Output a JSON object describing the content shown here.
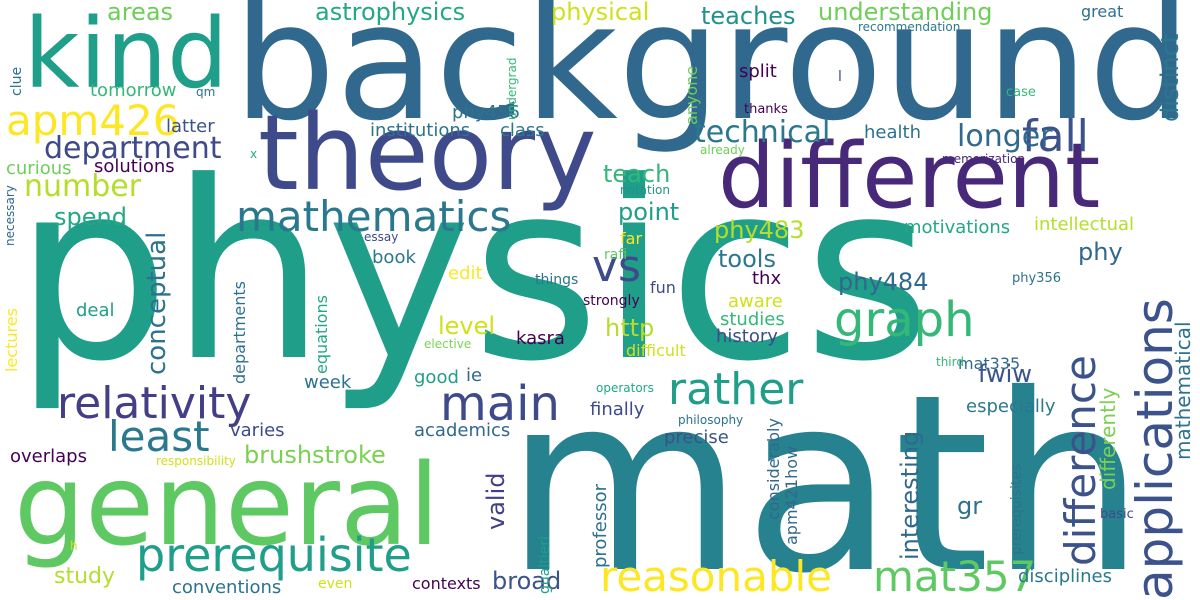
{
  "words": [
    {
      "text": "physics",
      "color": "#1f9e89",
      "orientation": "horizontal"
    },
    {
      "text": "math",
      "color": "#26828e",
      "orientation": "horizontal"
    },
    {
      "text": "background",
      "color": "#31688e",
      "orientation": "horizontal"
    },
    {
      "text": "different",
      "color": "#482878",
      "orientation": "horizontal"
    },
    {
      "text": "theory",
      "color": "#3e4a89",
      "orientation": "horizontal"
    },
    {
      "text": "general",
      "color": "#5ec962",
      "orientation": "horizontal"
    },
    {
      "text": "kind",
      "color": "#1f9e89",
      "orientation": "horizontal"
    },
    {
      "text": "vs",
      "color": "#3e4a89",
      "orientation": "horizontal"
    },
    {
      "text": "graph",
      "color": "#35b779",
      "orientation": "horizontal"
    },
    {
      "text": "prerequisite",
      "color": "#1f9e89",
      "orientation": "horizontal"
    },
    {
      "text": "relativity",
      "color": "#433e85",
      "orientation": "horizontal"
    },
    {
      "text": "main",
      "color": "#3e4a89",
      "orientation": "horizontal"
    },
    {
      "text": "rather",
      "color": "#1f9e89",
      "orientation": "horizontal"
    },
    {
      "text": "mathematics",
      "color": "#2a788e",
      "orientation": "horizontal"
    },
    {
      "text": "apm426",
      "color": "#fde725",
      "orientation": "horizontal"
    },
    {
      "text": "least",
      "color": "#2a788e",
      "orientation": "horizontal"
    },
    {
      "text": "reasonable",
      "color": "#fde725",
      "orientation": "horizontal"
    },
    {
      "text": "mat357",
      "color": "#5ec962",
      "orientation": "horizontal"
    },
    {
      "text": "applications",
      "color": "#3b528b",
      "orientation": "vertical"
    },
    {
      "text": "difference",
      "color": "#3b528b",
      "orientation": "vertical"
    },
    {
      "text": "fall",
      "color": "#3b528b",
      "orientation": "horizontal"
    },
    {
      "text": "number",
      "color": "#b5de2b",
      "orientation": "horizontal"
    },
    {
      "text": "department",
      "color": "#3e4a89",
      "orientation": "horizontal"
    },
    {
      "text": "technical",
      "color": "#2a788e",
      "orientation": "horizontal"
    },
    {
      "text": "longer",
      "color": "#31688e",
      "orientation": "horizontal"
    },
    {
      "text": "astrophysics",
      "color": "#22a884",
      "orientation": "horizontal"
    },
    {
      "text": "understanding",
      "color": "#6ece58",
      "orientation": "horizontal"
    },
    {
      "text": "physical",
      "color": "#d0e11c",
      "orientation": "horizontal"
    },
    {
      "text": "teaches",
      "color": "#21918c",
      "orientation": "horizontal"
    },
    {
      "text": "areas",
      "color": "#6ece58",
      "orientation": "horizontal"
    },
    {
      "text": "point",
      "color": "#1f9e89",
      "orientation": "horizontal"
    },
    {
      "text": "teach",
      "color": "#35b779",
      "orientation": "horizontal"
    },
    {
      "text": "spend",
      "color": "#22a884",
      "orientation": "horizontal"
    },
    {
      "text": "phy484",
      "color": "#31688e",
      "orientation": "horizontal"
    },
    {
      "text": "phy483",
      "color": "#b5de2b",
      "orientation": "horizontal"
    },
    {
      "text": "tools",
      "color": "#2a788e",
      "orientation": "horizontal"
    },
    {
      "text": "phy",
      "color": "#31688e",
      "orientation": "horizontal"
    },
    {
      "text": "http",
      "color": "#b5de2b",
      "orientation": "horizontal"
    },
    {
      "text": "level",
      "color": "#d0e11c",
      "orientation": "horizontal"
    },
    {
      "text": "fwiw",
      "color": "#3b528b",
      "orientation": "horizontal"
    },
    {
      "text": "brushstroke",
      "color": "#7ad151",
      "orientation": "horizontal"
    },
    {
      "text": "broad",
      "color": "#3b528b",
      "orientation": "horizontal"
    },
    {
      "text": "study",
      "color": "#b5de2b",
      "orientation": "horizontal"
    },
    {
      "text": "conventions",
      "color": "#2c728e",
      "orientation": "horizontal"
    },
    {
      "text": "gr",
      "color": "#2c728e",
      "orientation": "horizontal"
    },
    {
      "text": "disciplines",
      "color": "#2a788e",
      "orientation": "horizontal"
    },
    {
      "text": "conceptual",
      "color": "#2c728e",
      "orientation": "vertical"
    },
    {
      "text": "mathematical",
      "color": "#2c728e",
      "orientation": "vertical"
    },
    {
      "text": "interesting",
      "color": "#31688e",
      "orientation": "vertical"
    },
    {
      "text": "differently",
      "color": "#7ad151",
      "orientation": "vertical"
    },
    {
      "text": "distinct",
      "color": "#2a788e",
      "orientation": "vertical"
    },
    {
      "text": "valid",
      "color": "#433e85",
      "orientation": "vertical"
    },
    {
      "text": "institutions",
      "color": "#2c728e",
      "orientation": "horizontal"
    },
    {
      "text": "class",
      "color": "#2a788e",
      "orientation": "horizontal"
    },
    {
      "text": "phy456",
      "color": "#2c728e",
      "orientation": "horizontal"
    },
    {
      "text": "tomorrow",
      "color": "#35b779",
      "orientation": "horizontal"
    },
    {
      "text": "latter",
      "color": "#3b528b",
      "orientation": "horizontal"
    },
    {
      "text": "curious",
      "color": "#6ece58",
      "orientation": "horizontal"
    },
    {
      "text": "solutions",
      "color": "#440154",
      "orientation": "horizontal"
    },
    {
      "text": "split",
      "color": "#440154",
      "orientation": "horizontal"
    },
    {
      "text": "health",
      "color": "#2c728e",
      "orientation": "horizontal"
    },
    {
      "text": "motivations",
      "color": "#22a884",
      "orientation": "horizontal"
    },
    {
      "text": "intellectual",
      "color": "#b5de2b",
      "orientation": "horizontal"
    },
    {
      "text": "thx",
      "color": "#440154",
      "orientation": "horizontal"
    },
    {
      "text": "aware",
      "color": "#d0e11c",
      "orientation": "horizontal"
    },
    {
      "text": "studies",
      "color": "#35b779",
      "orientation": "horizontal"
    },
    {
      "text": "history",
      "color": "#3e4a89",
      "orientation": "horizontal"
    },
    {
      "text": "mat335",
      "color": "#31688e",
      "orientation": "horizontal"
    },
    {
      "text": "especially",
      "color": "#2a788e",
      "orientation": "horizontal"
    },
    {
      "text": "finally",
      "color": "#3e4a89",
      "orientation": "horizontal"
    },
    {
      "text": "academics",
      "color": "#31688e",
      "orientation": "horizontal"
    },
    {
      "text": "precise",
      "color": "#3b528b",
      "orientation": "horizontal"
    },
    {
      "text": "overlaps",
      "color": "#440154",
      "orientation": "horizontal"
    },
    {
      "text": "varies",
      "color": "#3e4a89",
      "orientation": "horizontal"
    },
    {
      "text": "deal",
      "color": "#1f9e89",
      "orientation": "horizontal"
    },
    {
      "text": "week",
      "color": "#2c728e",
      "orientation": "horizontal"
    },
    {
      "text": "good",
      "color": "#1f9e89",
      "orientation": "horizontal"
    },
    {
      "text": "ie",
      "color": "#31688e",
      "orientation": "horizontal"
    },
    {
      "text": "kasra",
      "color": "#440154",
      "orientation": "horizontal"
    },
    {
      "text": "book",
      "color": "#2a788e",
      "orientation": "horizontal"
    },
    {
      "text": "edit",
      "color": "#fde725",
      "orientation": "horizontal"
    },
    {
      "text": "things",
      "color": "#2c728e",
      "orientation": "horizontal"
    },
    {
      "text": "fun",
      "color": "#3e4a89",
      "orientation": "horizontal"
    },
    {
      "text": "strongly",
      "color": "#440154",
      "orientation": "horizontal"
    },
    {
      "text": "difficult",
      "color": "#d0e11c",
      "orientation": "horizontal"
    },
    {
      "text": "far",
      "color": "#fde725",
      "orientation": "horizontal"
    },
    {
      "text": "rafi",
      "color": "#5ec962",
      "orientation": "horizontal"
    },
    {
      "text": "great",
      "color": "#2c728e",
      "orientation": "horizontal"
    },
    {
      "text": "recommendation",
      "color": "#2a788e",
      "orientation": "horizontal"
    },
    {
      "text": "case",
      "color": "#35b779",
      "orientation": "horizontal"
    },
    {
      "text": "thanks",
      "color": "#440154",
      "orientation": "horizontal"
    },
    {
      "text": "already",
      "color": "#6ece58",
      "orientation": "horizontal"
    },
    {
      "text": "memorization",
      "color": "#482878",
      "orientation": "horizontal"
    },
    {
      "text": "notation",
      "color": "#21918c",
      "orientation": "horizontal"
    },
    {
      "text": "essay",
      "color": "#3e4a89",
      "orientation": "horizontal"
    },
    {
      "text": "elective",
      "color": "#7ad151",
      "orientation": "horizontal"
    },
    {
      "text": "operators",
      "color": "#22a884",
      "orientation": "horizontal"
    },
    {
      "text": "philosophy",
      "color": "#2c728e",
      "orientation": "horizontal"
    },
    {
      "text": "responsibility",
      "color": "#d0e11c",
      "orientation": "horizontal"
    },
    {
      "text": "contexts",
      "color": "#440154",
      "orientation": "horizontal"
    },
    {
      "text": "even",
      "color": "#d0e11c",
      "orientation": "horizontal"
    },
    {
      "text": "basic",
      "color": "#3e4a89",
      "orientation": "horizontal"
    },
    {
      "text": "third",
      "color": "#35b779",
      "orientation": "horizontal"
    },
    {
      "text": "phy356",
      "color": "#2c728e",
      "orientation": "horizontal"
    },
    {
      "text": "qm",
      "color": "#2c728e",
      "orientation": "horizontal"
    },
    {
      "text": "x",
      "color": "#22a884",
      "orientation": "horizontal"
    },
    {
      "text": "l",
      "color": "#3e4a89",
      "orientation": "horizontal"
    },
    {
      "text": "h",
      "color": "#d0e11c",
      "orientation": "horizontal"
    },
    {
      "text": "clue",
      "color": "#2c728e",
      "orientation": "vertical"
    },
    {
      "text": "necessary",
      "color": "#31688e",
      "orientation": "vertical"
    },
    {
      "text": "lectures",
      "color": "#fde725",
      "orientation": "vertical"
    },
    {
      "text": "departments",
      "color": "#2c728e",
      "orientation": "vertical"
    },
    {
      "text": "equations",
      "color": "#22a884",
      "orientation": "vertical"
    },
    {
      "text": "undergrad",
      "color": "#35b779",
      "orientation": "vertical"
    },
    {
      "text": "anyone",
      "color": "#6ece58",
      "orientation": "vertical"
    },
    {
      "text": "considerably",
      "color": "#31688e",
      "orientation": "vertical"
    },
    {
      "text": "apm421how",
      "color": "#31688e",
      "orientation": "vertical"
    },
    {
      "text": "professor",
      "color": "#2c728e",
      "orientation": "vertical"
    },
    {
      "text": "gualtieri",
      "color": "#1f9e89",
      "orientation": "vertical"
    },
    {
      "text": "prerequisites",
      "color": "#2c728e",
      "orientation": "vertical"
    }
  ]
}
